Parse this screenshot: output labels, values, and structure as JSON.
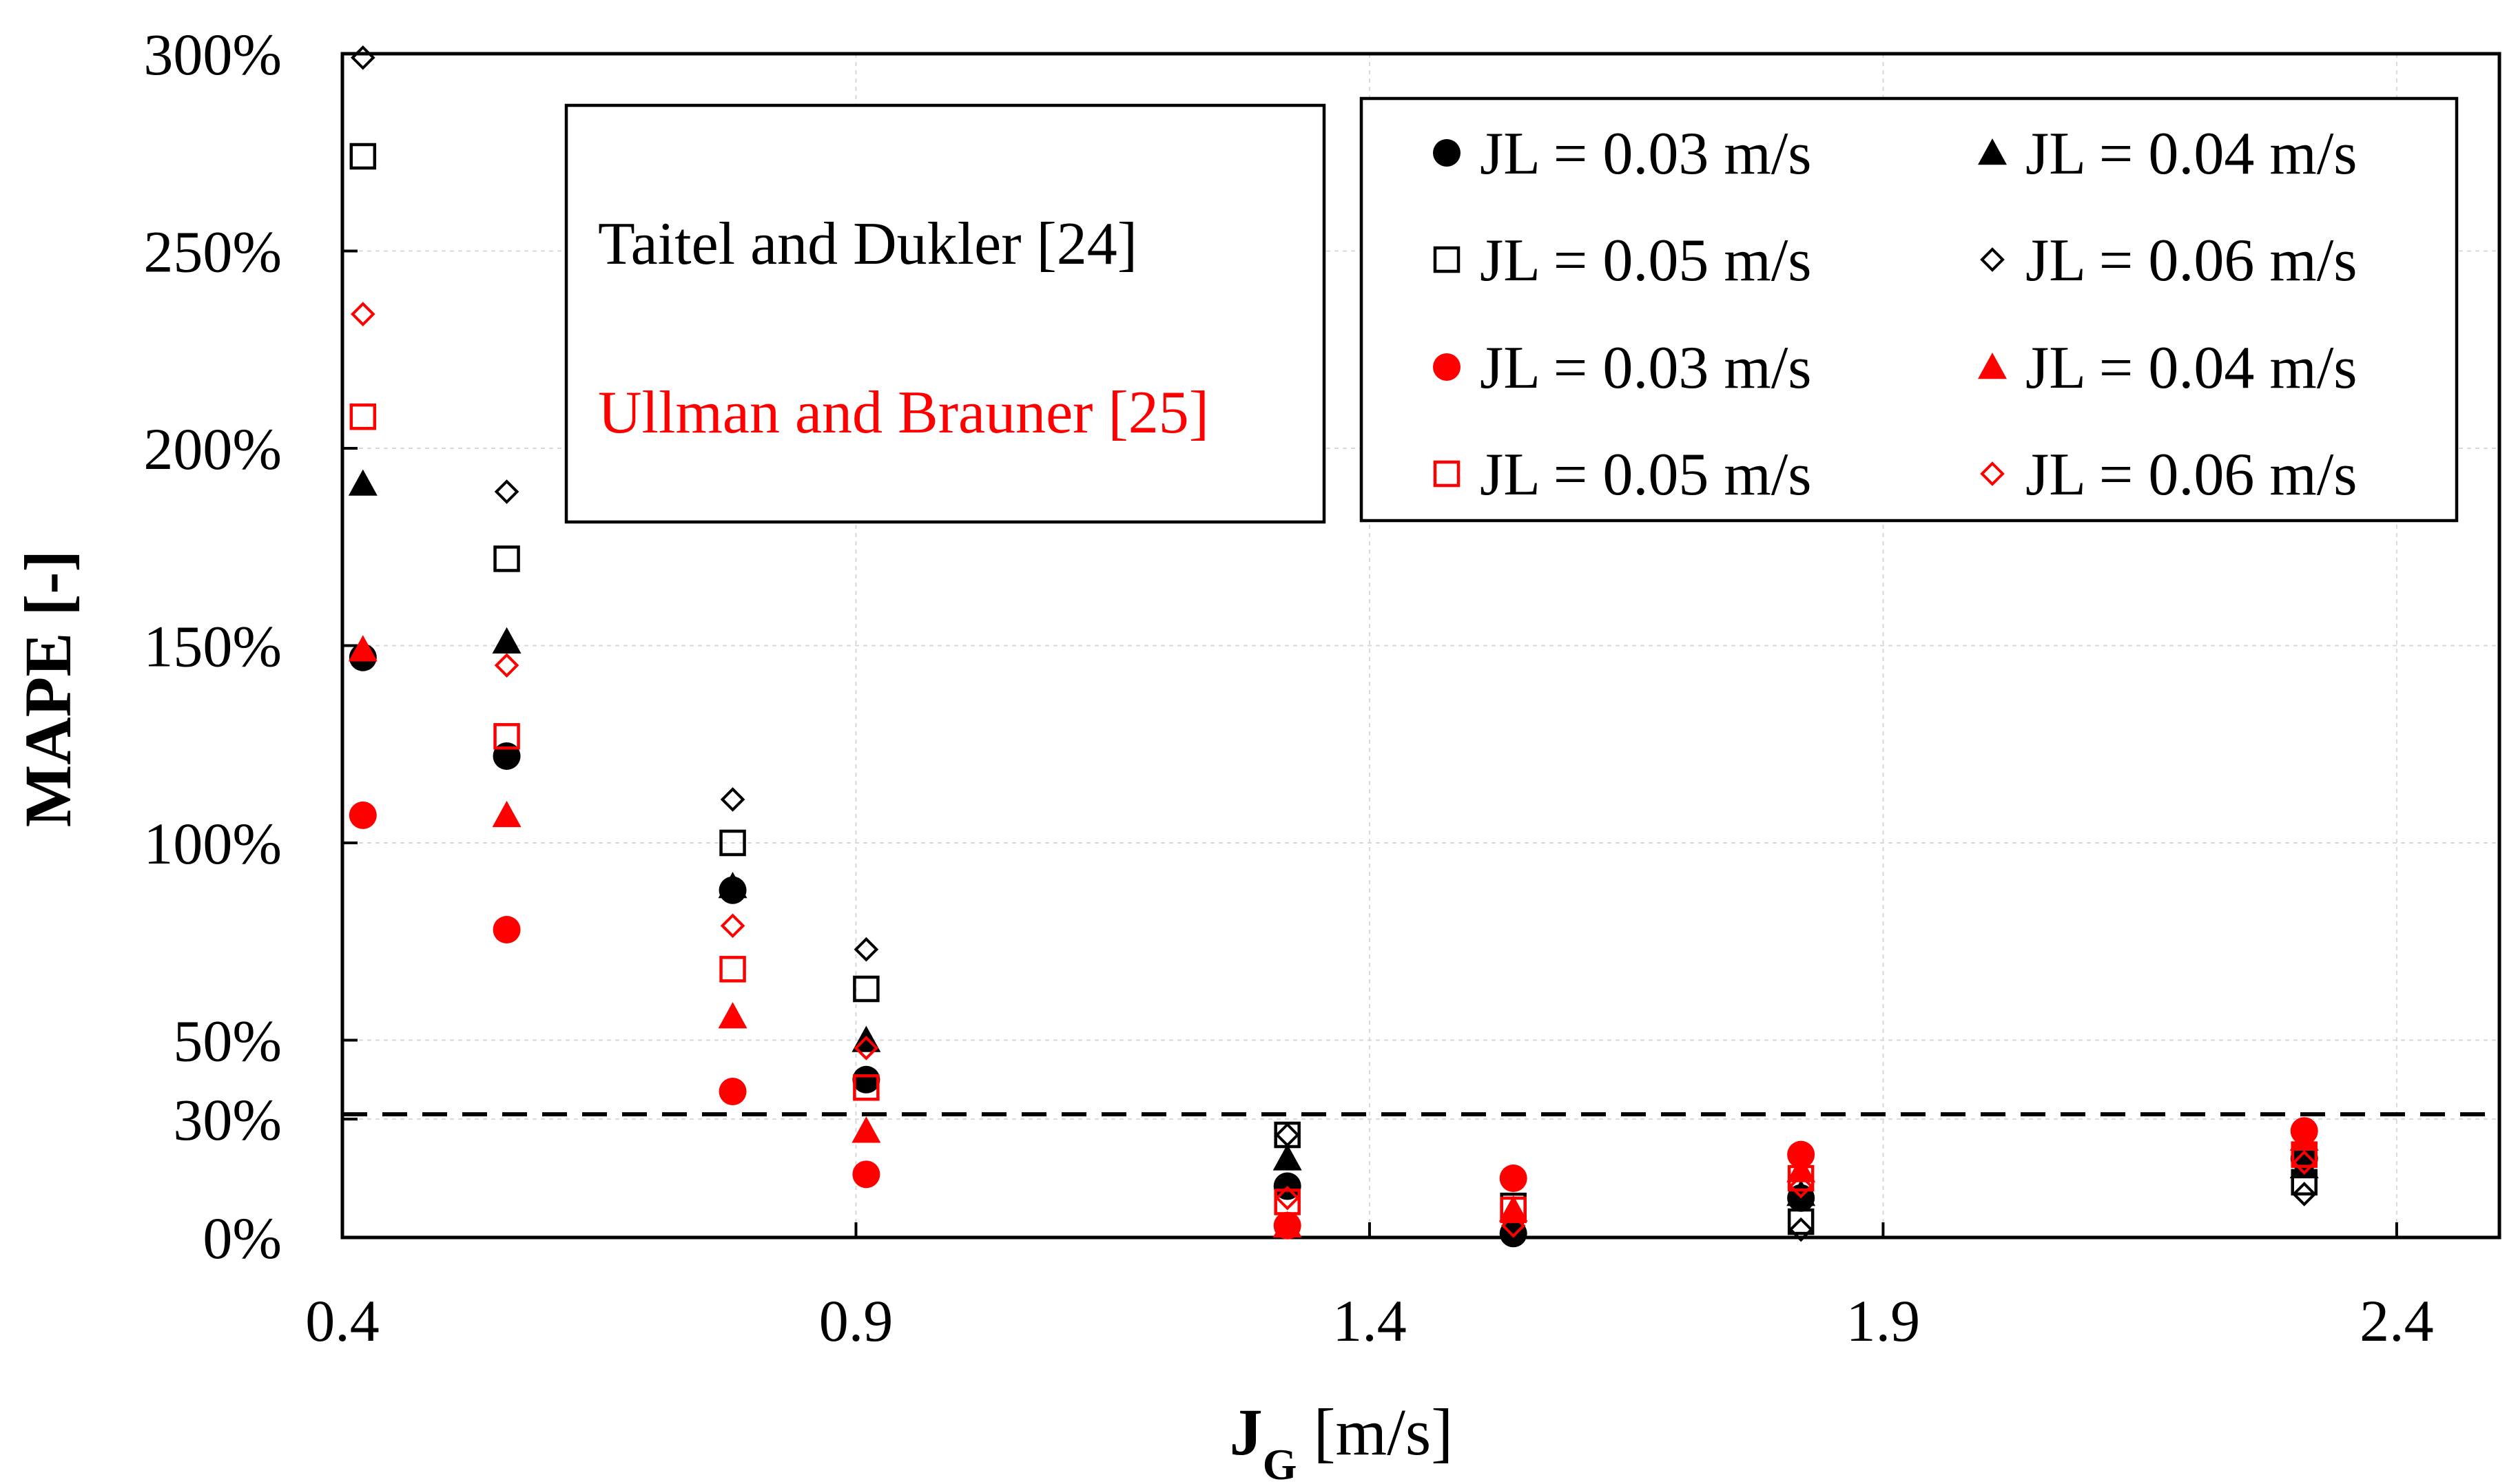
{
  "chart_data": {
    "type": "scatter",
    "xlabel_main": "J",
    "xlabel_sub": "G",
    "xlabel_unit": " [m/s]",
    "ylabel": "MAPE [-]",
    "xlim": [
      0.4,
      2.5
    ],
    "ylim": [
      0,
      300
    ],
    "x_ticks": [
      0.4,
      0.9,
      1.4,
      1.9,
      2.4
    ],
    "x_tick_labels": [
      "0.4",
      "0.9",
      "1.4",
      "1.9",
      "2.4"
    ],
    "y_ticks": [
      0,
      30,
      50,
      100,
      150,
      200,
      250,
      300
    ],
    "y_tick_labels": [
      "0%",
      "30%",
      "50%",
      "100%",
      "150%",
      "200%",
      "250%",
      "300%"
    ],
    "grid": true,
    "reference_line": {
      "y": 30,
      "style": "dashed"
    },
    "annotations": {
      "model_1": {
        "text": "Taitel and Dukler [24]",
        "color": "#000000"
      },
      "model_2": {
        "text": "Ullman and Brauner [25]",
        "color": "#ff0000"
      }
    },
    "series": [
      {
        "name": "JL = 0.03 m/s",
        "model": "Taitel and Dukler [24]",
        "color": "#000000",
        "marker": "circle-filled",
        "x": [
          0.42,
          0.56,
          0.78,
          0.91,
          1.32,
          1.54,
          1.82,
          2.31
        ],
        "y": [
          147,
          122,
          88,
          40,
          13,
          1,
          10,
          20
        ]
      },
      {
        "name": "JL = 0.04 m/s",
        "model": "Taitel and Dukler [24]",
        "color": "#000000",
        "marker": "triangle-filled",
        "x": [
          0.42,
          0.56,
          0.78,
          0.91,
          1.32,
          1.54,
          1.82,
          2.31
        ],
        "y": [
          191,
          151,
          89,
          50,
          20,
          3,
          11,
          18
        ]
      },
      {
        "name": "JL = 0.05 m/s",
        "model": "Taitel and Dukler [24]",
        "color": "#000000",
        "marker": "square-open",
        "x": [
          0.42,
          0.56,
          0.78,
          0.91,
          1.32,
          1.54,
          1.82,
          2.31
        ],
        "y": [
          274,
          172,
          100,
          63,
          26,
          8,
          4,
          14
        ]
      },
      {
        "name": "JL = 0.06 m/s",
        "model": "Taitel and Dukler [24]",
        "color": "#000000",
        "marker": "diamond-open",
        "x": [
          0.42,
          0.56,
          0.78,
          0.91,
          1.32,
          1.54,
          1.82,
          2.31
        ],
        "y": [
          299,
          189,
          111,
          73,
          26,
          4,
          2,
          11
        ]
      },
      {
        "name": "JL = 0.03 m/s",
        "model": "Ullman and Brauner [25]",
        "color": "#ff0000",
        "marker": "circle-filled",
        "x": [
          0.42,
          0.56,
          0.78,
          0.91,
          1.32,
          1.54,
          1.82,
          2.31
        ],
        "y": [
          107,
          78,
          37,
          16,
          3,
          15,
          21,
          27
        ]
      },
      {
        "name": "JL = 0.04 m/s",
        "model": "Ullman and Brauner [25]",
        "color": "#ff0000",
        "marker": "triangle-filled",
        "x": [
          0.42,
          0.56,
          0.78,
          0.91,
          1.32,
          1.54,
          1.82,
          2.31
        ],
        "y": [
          149,
          107,
          56,
          27,
          3,
          7,
          17,
          25
        ]
      },
      {
        "name": "JL = 0.05 m/s",
        "model": "Ullman and Brauner [25]",
        "color": "#ff0000",
        "marker": "square-open",
        "x": [
          0.42,
          0.56,
          0.78,
          0.91,
          1.32,
          1.54,
          1.82,
          2.31
        ],
        "y": [
          208,
          127,
          68,
          38,
          9,
          7,
          15,
          21
        ]
      },
      {
        "name": "JL = 0.06 m/s",
        "model": "Ullman and Brauner [25]",
        "color": "#ff0000",
        "marker": "diamond-open",
        "x": [
          0.42,
          0.56,
          0.78,
          0.91,
          1.32,
          1.54,
          1.82,
          2.31
        ],
        "y": [
          234,
          145,
          79,
          48,
          10,
          3,
          13,
          19
        ]
      }
    ]
  }
}
